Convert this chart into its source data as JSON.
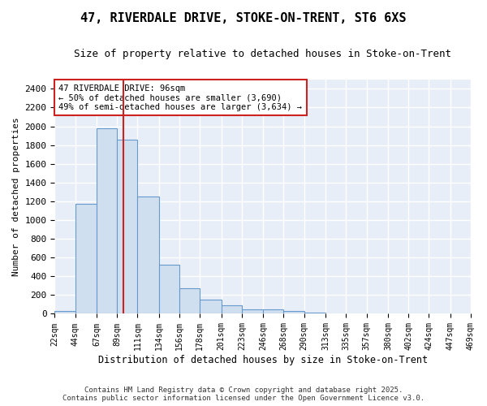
{
  "title_line1": "47, RIVERDALE DRIVE, STOKE-ON-TRENT, ST6 6XS",
  "title_line2": "Size of property relative to detached houses in Stoke-on-Trent",
  "xlabel": "Distribution of detached houses by size in Stoke-on-Trent",
  "ylabel": "Number of detached properties",
  "bin_edges": [
    22,
    44,
    67,
    89,
    111,
    134,
    156,
    178,
    201,
    223,
    246,
    268,
    290,
    313,
    335,
    357,
    380,
    402,
    424,
    447,
    469
  ],
  "bar_heights": [
    30,
    1170,
    1980,
    1860,
    1250,
    520,
    275,
    150,
    90,
    45,
    45,
    30,
    10,
    5,
    5,
    5,
    2,
    2,
    2,
    2
  ],
  "bar_color": "#d0dff0",
  "bar_edgecolor": "#6699cc",
  "red_line_x": 96,
  "annotation_text": "47 RIVERDALE DRIVE: 96sqm\n← 50% of detached houses are smaller (3,690)\n49% of semi-detached houses are larger (3,634) →",
  "annotation_box_color": "white",
  "annotation_box_edgecolor": "#cc2222",
  "ylim": [
    0,
    2500
  ],
  "yticks": [
    0,
    200,
    400,
    600,
    800,
    1000,
    1200,
    1400,
    1600,
    1800,
    2000,
    2200,
    2400
  ],
  "background_color": "#e8eef8",
  "grid_color": "#ffffff",
  "footer_line1": "Contains HM Land Registry data © Crown copyright and database right 2025.",
  "footer_line2": "Contains public sector information licensed under the Open Government Licence v3.0."
}
